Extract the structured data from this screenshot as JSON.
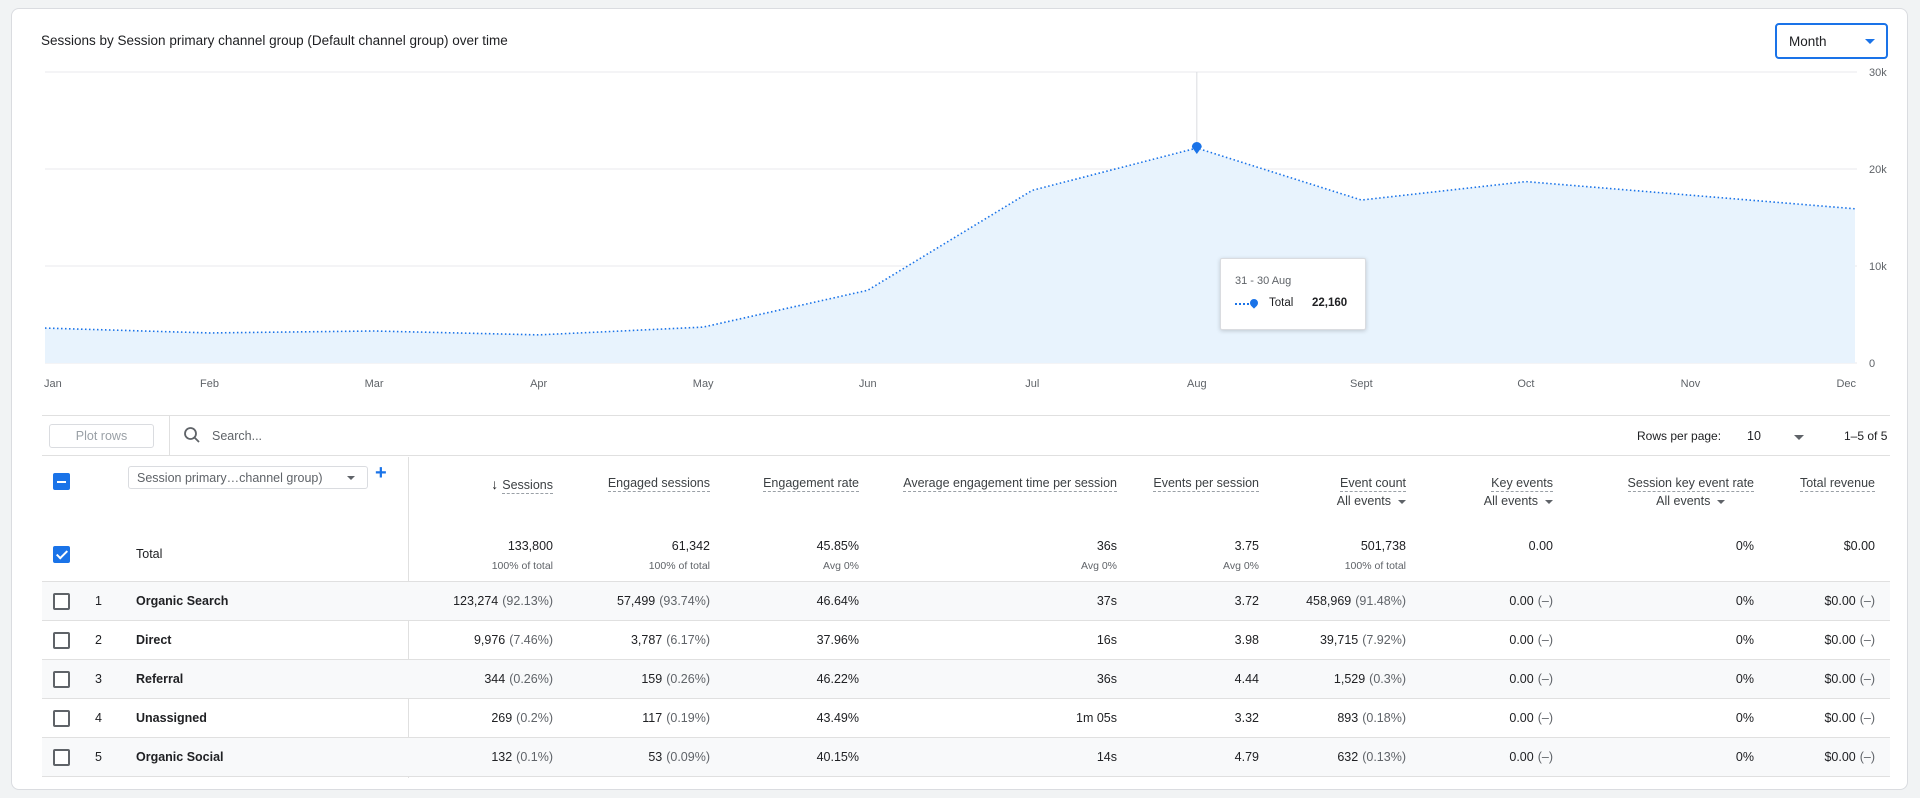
{
  "card": {
    "title": "Sessions by Session primary channel group (Default channel group) over time",
    "period_select": "Month"
  },
  "chart_data": {
    "type": "area",
    "x": [
      "Jan",
      "Feb",
      "Mar",
      "Apr",
      "May",
      "Jun",
      "Jul",
      "Aug",
      "Sept",
      "Oct",
      "Nov",
      "Dec"
    ],
    "series": [
      {
        "name": "Total",
        "values": [
          3600,
          3100,
          3300,
          2900,
          3700,
          7500,
          17800,
          22160,
          16800,
          18700,
          17300,
          15900
        ]
      }
    ],
    "ylim": [
      0,
      30000
    ],
    "yticks": [
      "0",
      "10k",
      "20k",
      "30k"
    ],
    "grid": true,
    "highlight_index": 7,
    "line_color": "#1a73e8",
    "fill_color": "#e8f3fd",
    "tooltip": {
      "date": "31 - 30 Aug",
      "label": "Total",
      "value": "22,160"
    }
  },
  "toolbar": {
    "plot_rows_label": "Plot rows",
    "search_placeholder": "Search...",
    "rows_per_page_label": "Rows per page:",
    "rows_per_page_value": "10",
    "range_label": "1–5 of 5"
  },
  "table": {
    "dimension_label": "Session primary…channel group)",
    "add_icon": "plus-icon",
    "columns": [
      {
        "label": "Sessions",
        "sub": ""
      },
      {
        "label": "Engaged sessions",
        "sub": ""
      },
      {
        "label": "Engagement rate",
        "sub": ""
      },
      {
        "label": "Average engagement time per session",
        "sub": ""
      },
      {
        "label": "Events per session",
        "sub": ""
      },
      {
        "label": "Event count",
        "sub": "All events"
      },
      {
        "label": "Key events",
        "sub": "All events"
      },
      {
        "label": "Session key event rate",
        "sub": "All events"
      },
      {
        "label": "Total revenue",
        "sub": ""
      }
    ],
    "total": {
      "label": "Total",
      "values": [
        {
          "main": "133,800",
          "sub": "100% of total"
        },
        {
          "main": "61,342",
          "sub": "100% of total"
        },
        {
          "main": "45.85%",
          "sub": "Avg 0%"
        },
        {
          "main": "36s",
          "sub": "Avg 0%"
        },
        {
          "main": "3.75",
          "sub": "Avg 0%"
        },
        {
          "main": "501,738",
          "sub": "100% of total"
        },
        {
          "main": "0.00",
          "sub": ""
        },
        {
          "main": "0%",
          "sub": ""
        },
        {
          "main": "$0.00",
          "sub": ""
        }
      ]
    },
    "rows": [
      {
        "num": "1",
        "name": "Organic Search",
        "cells": [
          {
            "v": "123,274",
            "p": "(92.13%)"
          },
          {
            "v": "57,499",
            "p": "(93.74%)"
          },
          {
            "v": "46.64%",
            "p": ""
          },
          {
            "v": "37s",
            "p": ""
          },
          {
            "v": "3.72",
            "p": ""
          },
          {
            "v": "458,969",
            "p": "(91.48%)"
          },
          {
            "v": "0.00",
            "p": "(–)"
          },
          {
            "v": "0%",
            "p": ""
          },
          {
            "v": "$0.00",
            "p": "(–)"
          }
        ]
      },
      {
        "num": "2",
        "name": "Direct",
        "cells": [
          {
            "v": "9,976",
            "p": "(7.46%)"
          },
          {
            "v": "3,787",
            "p": "(6.17%)"
          },
          {
            "v": "37.96%",
            "p": ""
          },
          {
            "v": "16s",
            "p": ""
          },
          {
            "v": "3.98",
            "p": ""
          },
          {
            "v": "39,715",
            "p": "(7.92%)"
          },
          {
            "v": "0.00",
            "p": "(–)"
          },
          {
            "v": "0%",
            "p": ""
          },
          {
            "v": "$0.00",
            "p": "(–)"
          }
        ]
      },
      {
        "num": "3",
        "name": "Referral",
        "cells": [
          {
            "v": "344",
            "p": "(0.26%)"
          },
          {
            "v": "159",
            "p": "(0.26%)"
          },
          {
            "v": "46.22%",
            "p": ""
          },
          {
            "v": "36s",
            "p": ""
          },
          {
            "v": "4.44",
            "p": ""
          },
          {
            "v": "1,529",
            "p": "(0.3%)"
          },
          {
            "v": "0.00",
            "p": "(–)"
          },
          {
            "v": "0%",
            "p": ""
          },
          {
            "v": "$0.00",
            "p": "(–)"
          }
        ]
      },
      {
        "num": "4",
        "name": "Unassigned",
        "cells": [
          {
            "v": "269",
            "p": "(0.2%)"
          },
          {
            "v": "117",
            "p": "(0.19%)"
          },
          {
            "v": "43.49%",
            "p": ""
          },
          {
            "v": "1m 05s",
            "p": ""
          },
          {
            "v": "3.32",
            "p": ""
          },
          {
            "v": "893",
            "p": "(0.18%)"
          },
          {
            "v": "0.00",
            "p": "(–)"
          },
          {
            "v": "0%",
            "p": ""
          },
          {
            "v": "$0.00",
            "p": "(–)"
          }
        ]
      },
      {
        "num": "5",
        "name": "Organic Social",
        "cells": [
          {
            "v": "132",
            "p": "(0.1%)"
          },
          {
            "v": "53",
            "p": "(0.09%)"
          },
          {
            "v": "40.15%",
            "p": ""
          },
          {
            "v": "14s",
            "p": ""
          },
          {
            "v": "4.79",
            "p": ""
          },
          {
            "v": "632",
            "p": "(0.13%)"
          },
          {
            "v": "0.00",
            "p": "(–)"
          },
          {
            "v": "0%",
            "p": ""
          },
          {
            "v": "$0.00",
            "p": "(–)"
          }
        ]
      }
    ]
  }
}
